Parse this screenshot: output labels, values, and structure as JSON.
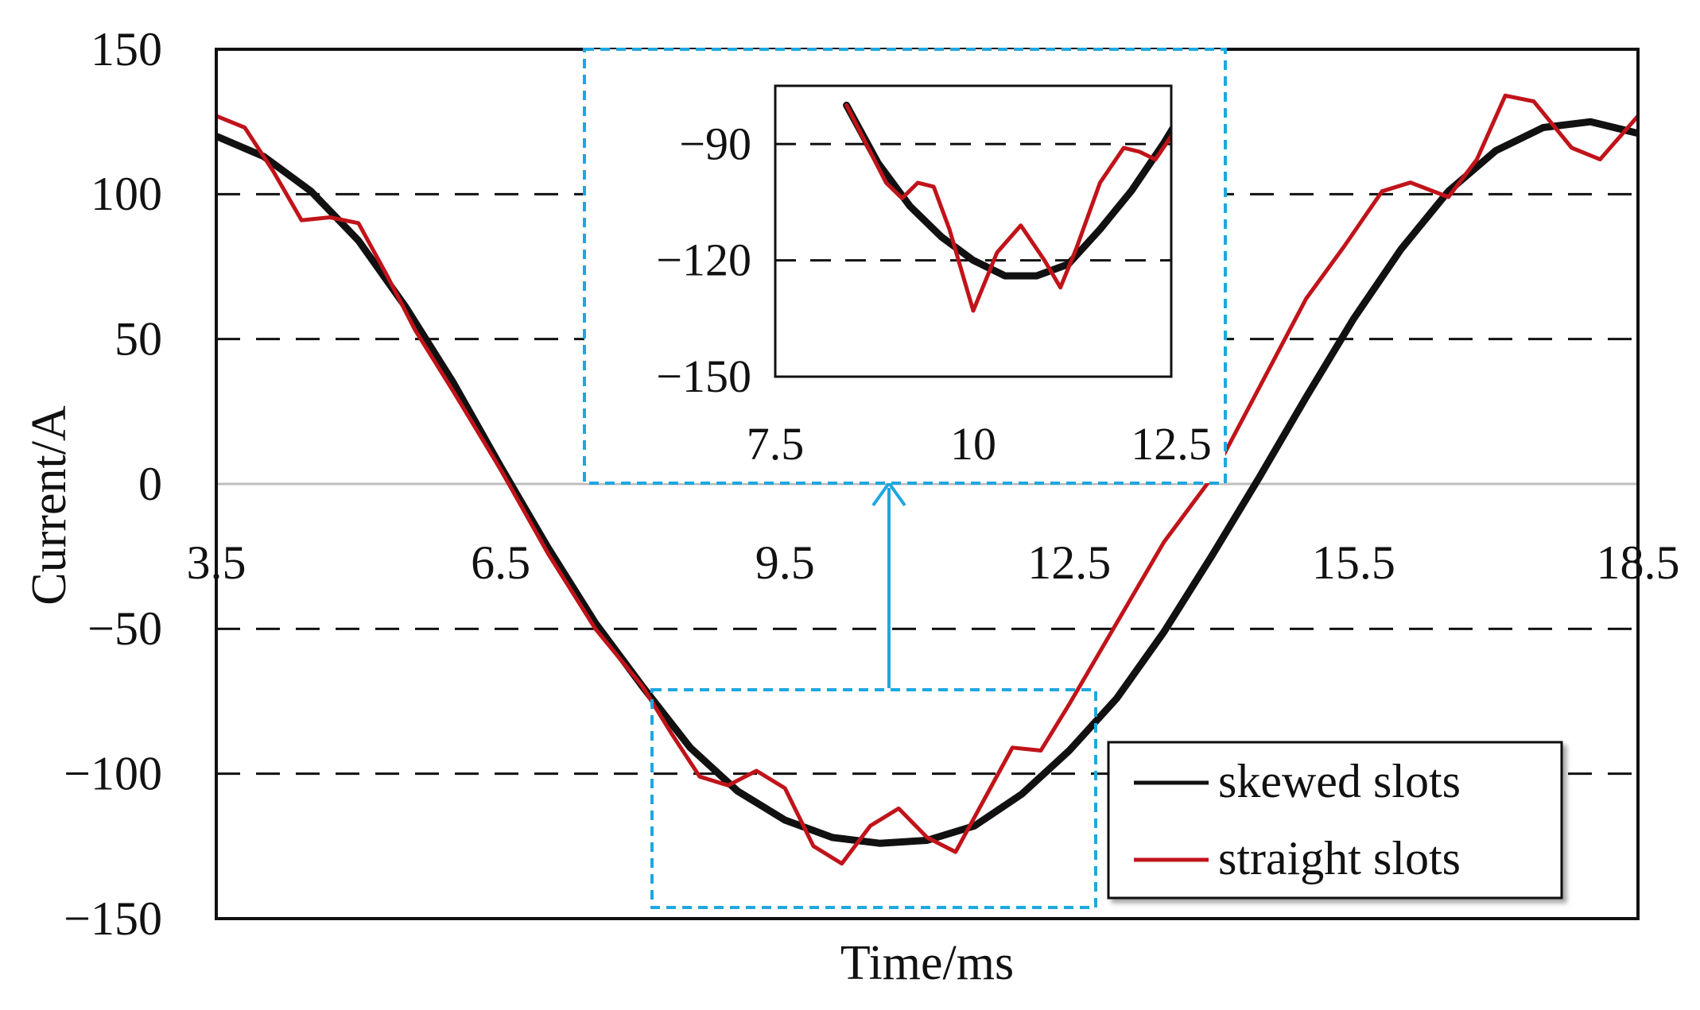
{
  "chart_data": [
    {
      "type": "line",
      "xlabel": "Time/ms",
      "ylabel": "Current/A",
      "xlim": [
        3.5,
        18.5
      ],
      "ylim": [
        -150,
        150
      ],
      "x_ticks": [
        "3.5",
        "6.5",
        "9.5",
        "12.5",
        "15.5",
        "18.5"
      ],
      "y_ticks": [
        "150",
        "100",
        "50",
        "0",
        "−50",
        "−100",
        "−150"
      ],
      "grid": "horizontal dashed",
      "legend_position": "bottom-right",
      "series": [
        {
          "name": "skewed slots",
          "color": "#111111",
          "x": [
            3.5,
            4.0,
            4.5,
            5.0,
            5.5,
            6.0,
            6.5,
            7.0,
            7.5,
            8.0,
            8.5,
            9.0,
            9.5,
            10.0,
            10.5,
            11.0,
            11.5,
            12.0,
            12.5,
            13.0,
            13.5,
            14.0,
            14.5,
            15.0,
            15.5,
            16.0,
            16.5,
            17.0,
            17.5,
            18.0,
            18.5
          ],
          "y": [
            120,
            113,
            101,
            84,
            61,
            35,
            6,
            -22,
            -48,
            -70,
            -91,
            -106,
            -116,
            -122,
            -124,
            -123,
            -118,
            -107,
            -92,
            -74,
            -51,
            -25,
            2,
            30,
            57,
            81,
            101,
            115,
            123,
            125,
            121
          ]
        },
        {
          "name": "straight slots",
          "color": "#c0141a",
          "x": [
            3.5,
            3.8,
            4.1,
            4.4,
            4.7,
            5.0,
            5.3,
            5.6,
            6.0,
            6.5,
            7.0,
            7.5,
            8.0,
            8.3,
            8.6,
            8.9,
            9.2,
            9.5,
            9.8,
            10.1,
            10.4,
            10.7,
            11.0,
            11.3,
            11.6,
            11.9,
            12.2,
            12.5,
            13.0,
            13.5,
            14.0,
            14.5,
            15.0,
            15.4,
            15.8,
            16.1,
            16.5,
            16.8,
            17.1,
            17.4,
            17.8,
            18.1,
            18.5
          ],
          "y": [
            127,
            123,
            108,
            91,
            92,
            90,
            72,
            53,
            32,
            5,
            -24,
            -50,
            -70,
            -86,
            -101,
            -104,
            -99,
            -105,
            -125,
            -131,
            -118,
            -112,
            -122,
            -127,
            -109,
            -91,
            -92,
            -76,
            -48,
            -20,
            2,
            33,
            64,
            82,
            101,
            104,
            99,
            112,
            134,
            132,
            116,
            112,
            127
          ]
        }
      ]
    },
    {
      "type": "line",
      "xlim": [
        7.5,
        12.5
      ],
      "ylim": [
        -150,
        -75
      ],
      "x_ticks": [
        "7.5",
        "10",
        "12.5"
      ],
      "y_ticks": [
        "−90",
        "−120",
        "−150"
      ],
      "grid": "horizontal dashed",
      "series": [
        {
          "color": "#111111",
          "x": [
            8.4,
            8.8,
            9.2,
            9.6,
            10.0,
            10.4,
            10.8,
            11.2,
            11.6,
            12.0,
            12.4,
            12.7
          ],
          "y": [
            -80,
            -95,
            -106,
            -114,
            -120,
            -124,
            -124,
            -121,
            -112,
            -102,
            -90,
            -80
          ]
        },
        {
          "color": "#c0141a",
          "x": [
            8.4,
            8.7,
            8.9,
            9.1,
            9.3,
            9.5,
            9.7,
            9.9,
            10.0,
            10.3,
            10.6,
            10.9,
            11.1,
            11.3,
            11.6,
            11.9,
            12.1,
            12.3,
            12.5,
            12.7
          ],
          "y": [
            -80,
            -92,
            -100,
            -104,
            -100,
            -101,
            -112,
            -126,
            -133,
            -118,
            -111,
            -120,
            -127,
            -117,
            -100,
            -91,
            -92,
            -94,
            -88,
            -80
          ]
        }
      ]
    }
  ]
}
